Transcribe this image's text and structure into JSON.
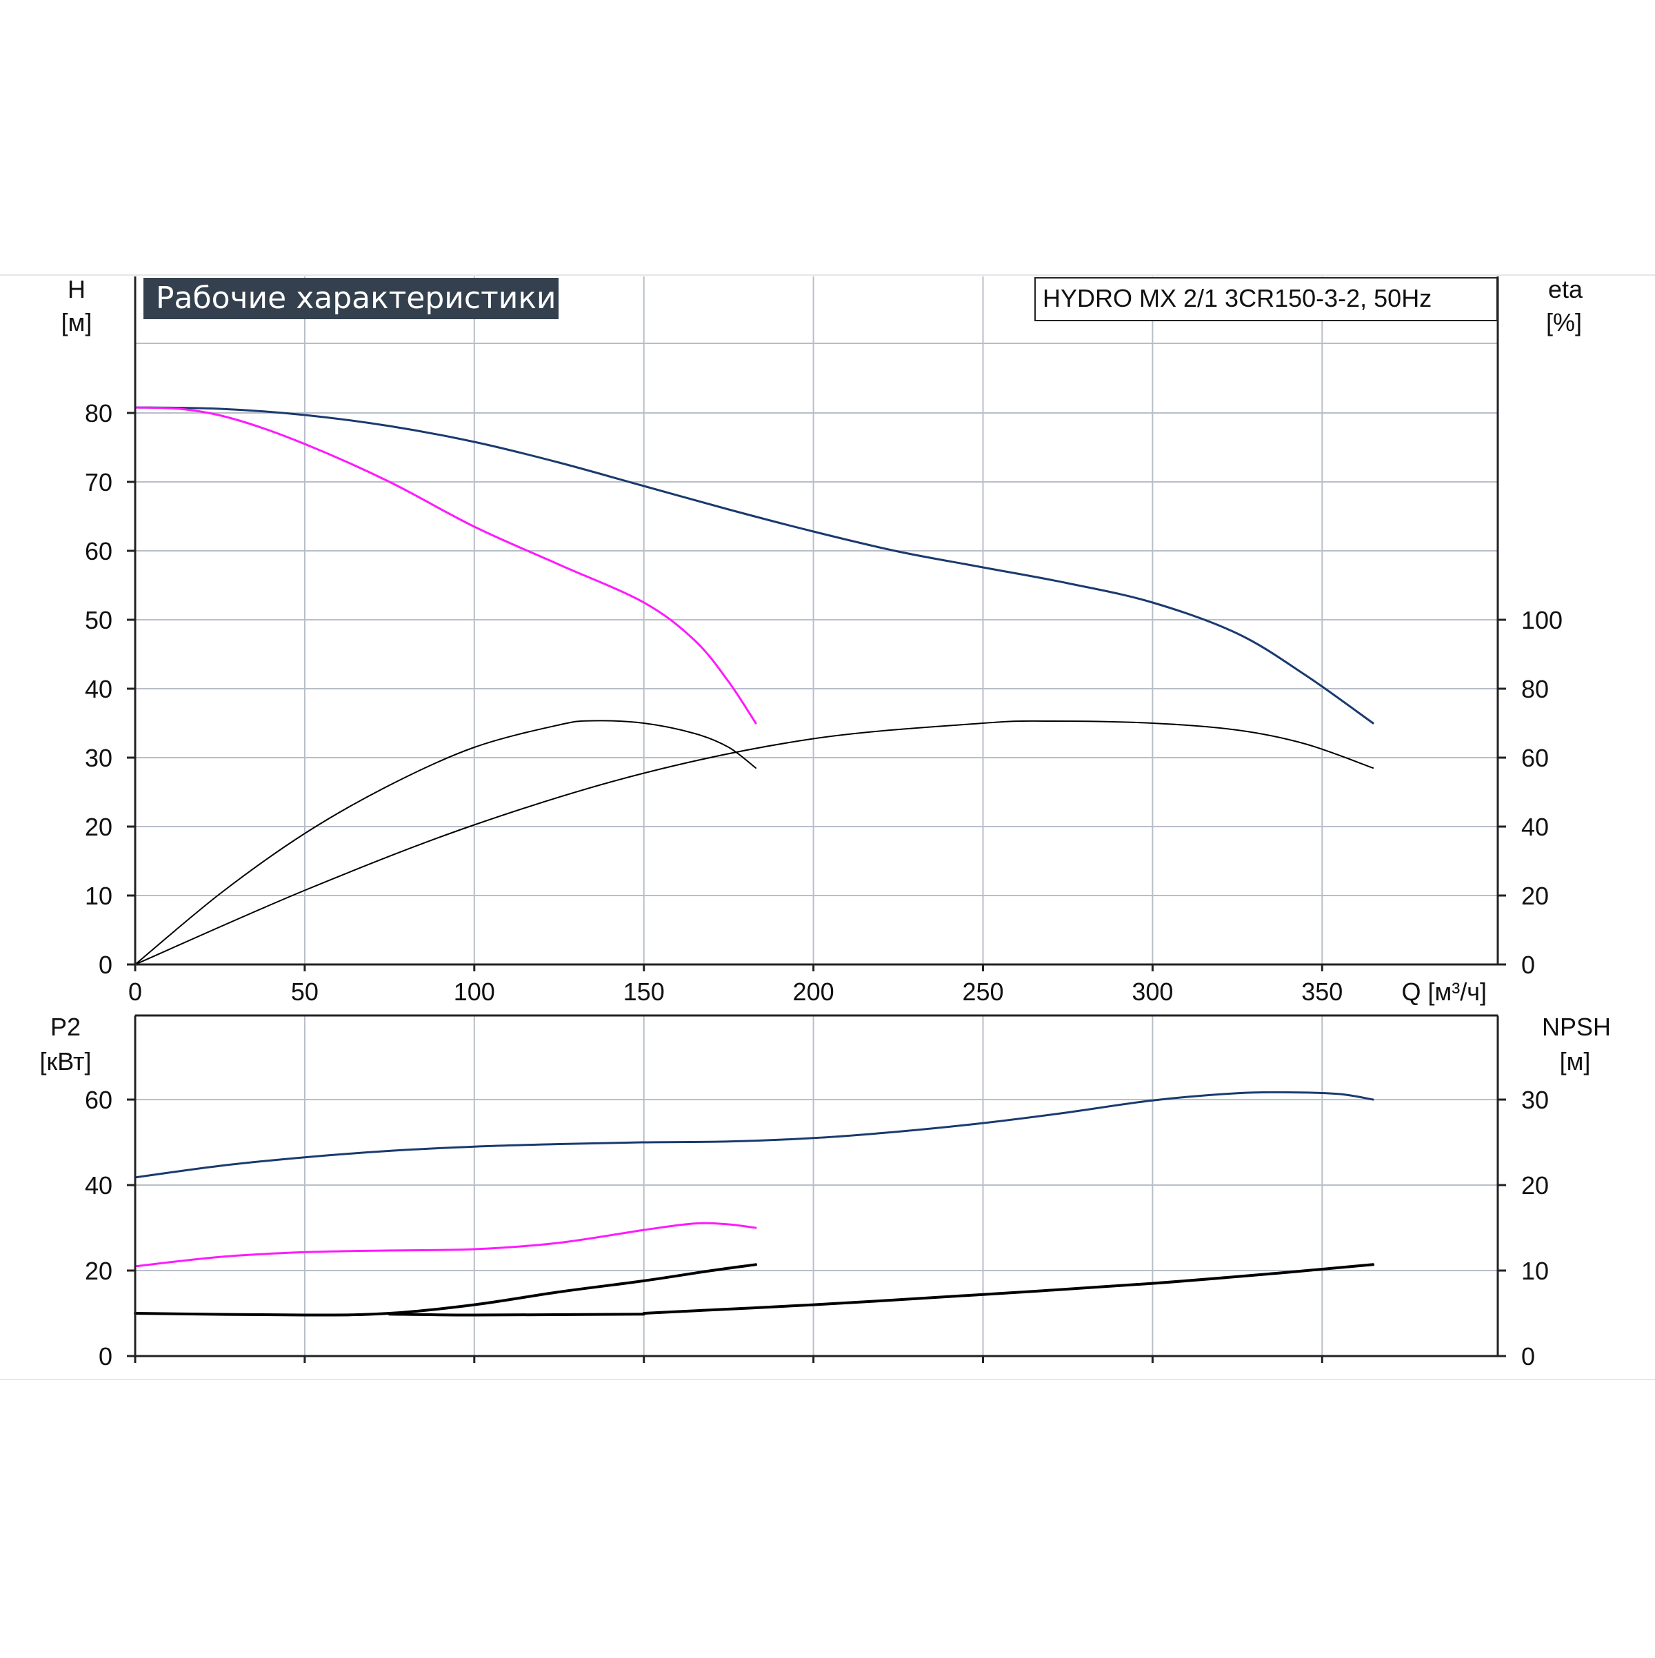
{
  "colors": {
    "background": "#ffffff",
    "grid": "#b8bec8",
    "axis": "#222222",
    "title_box_bg": "#34404e",
    "title_box_text": "#ffffff",
    "curve_full": "#1a3a6e",
    "curve_partial": "#ff19ff",
    "curve_black": "#000000"
  },
  "chart_data": [
    {
      "type": "line",
      "title": "Рабочие характеристики",
      "model_label": "HYDRO MX 2/1 3CR150-3-2, 50Hz",
      "xlabel": "Q [м³/ч]",
      "ylabel_line1": "H",
      "ylabel_line2": "[м]",
      "y2label_line1": "eta",
      "y2label_line2": "[%]",
      "xlim": [
        0,
        400
      ],
      "ylim": [
        0,
        90
      ],
      "y2lim": [
        0,
        100
      ],
      "grid": true,
      "x_ticks": [
        0,
        50,
        100,
        150,
        200,
        250,
        300,
        350
      ],
      "y_ticks": [
        0,
        10,
        20,
        30,
        40,
        50,
        60,
        70,
        80
      ],
      "y2_ticks": [
        0,
        20,
        40,
        60,
        80,
        100
      ],
      "x_tick_labels": [
        "0",
        "50",
        "100",
        "150",
        "200",
        "250",
        "300",
        "350"
      ],
      "y_tick_labels": [
        "0",
        "10",
        "20",
        "30",
        "40",
        "50",
        "60",
        "70",
        "80"
      ],
      "y2_tick_labels": [
        "0",
        "20",
        "40",
        "60",
        "80",
        "100"
      ],
      "series": [
        {
          "axis": "y",
          "color": "#1a3a6e",
          "points": [
            [
              0,
              80.8
            ],
            [
              25,
              80.6
            ],
            [
              50,
              79.7
            ],
            [
              75,
              78.1
            ],
            [
              100,
              75.8
            ],
            [
              125,
              72.8
            ],
            [
              150,
              69.4
            ],
            [
              175,
              66.0
            ],
            [
              200,
              62.8
            ],
            [
              225,
              59.9
            ],
            [
              250,
              57.6
            ],
            [
              275,
              55.3
            ],
            [
              300,
              52.5
            ],
            [
              325,
              48.0
            ],
            [
              345,
              42.0
            ],
            [
              365,
              35.0
            ]
          ]
        },
        {
          "axis": "y",
          "color": "#ff19ff",
          "points": [
            [
              0,
              80.8
            ],
            [
              15,
              80.5
            ],
            [
              30,
              79.0
            ],
            [
              50,
              75.5
            ],
            [
              75,
              70.0
            ],
            [
              100,
              63.5
            ],
            [
              125,
              58.0
            ],
            [
              150,
              52.5
            ],
            [
              165,
              47.0
            ],
            [
              175,
              41.0
            ],
            [
              183,
              35.0
            ]
          ]
        },
        {
          "axis": "y2",
          "color": "#000000",
          "points": [
            [
              0,
              0
            ],
            [
              25,
              20.5
            ],
            [
              50,
              38.0
            ],
            [
              75,
              52.0
            ],
            [
              100,
              63.0
            ],
            [
              125,
              69.5
            ],
            [
              135,
              70.7
            ],
            [
              150,
              70.0
            ],
            [
              165,
              67.0
            ],
            [
              175,
              63.0
            ],
            [
              183,
              57.0
            ]
          ]
        },
        {
          "axis": "y2",
          "color": "#000000",
          "points": [
            [
              0,
              0
            ],
            [
              50,
              21.5
            ],
            [
              100,
              40.5
            ],
            [
              150,
              55.5
            ],
            [
              200,
              65.5
            ],
            [
              250,
              70.0
            ],
            [
              270,
              70.6
            ],
            [
              300,
              70.0
            ],
            [
              325,
              68.0
            ],
            [
              345,
              64.0
            ],
            [
              365,
              57.0
            ]
          ]
        }
      ]
    },
    {
      "type": "line",
      "ylabel_line1": "P2",
      "ylabel_line2": "[кВт]",
      "y2label_line1": "NPSH",
      "y2label_line2": "[м]",
      "xlim": [
        0,
        400
      ],
      "ylim": [
        0,
        60
      ],
      "y2lim": [
        0,
        30
      ],
      "grid": true,
      "x_ticks": [
        0,
        50,
        100,
        150,
        200,
        250,
        300,
        350
      ],
      "y_ticks": [
        0,
        20,
        40,
        60
      ],
      "y2_ticks": [
        0,
        10,
        20,
        30
      ],
      "y_tick_labels": [
        "0",
        "20",
        "40",
        "60"
      ],
      "y2_tick_labels": [
        "0",
        "10",
        "20",
        "30"
      ],
      "series": [
        {
          "axis": "y",
          "color": "#1a3a6e",
          "points": [
            [
              0,
              41.8
            ],
            [
              25,
              44.5
            ],
            [
              50,
              46.5
            ],
            [
              75,
              48.0
            ],
            [
              100,
              49.0
            ],
            [
              125,
              49.6
            ],
            [
              150,
              50.0
            ],
            [
              175,
              50.2
            ],
            [
              200,
              51.0
            ],
            [
              225,
              52.5
            ],
            [
              250,
              54.5
            ],
            [
              275,
              57.0
            ],
            [
              300,
              59.8
            ],
            [
              325,
              61.5
            ],
            [
              340,
              61.7
            ],
            [
              355,
              61.3
            ],
            [
              365,
              60.0
            ]
          ]
        },
        {
          "axis": "y",
          "color": "#ff19ff",
          "points": [
            [
              0,
              21.0
            ],
            [
              25,
              23.2
            ],
            [
              50,
              24.3
            ],
            [
              75,
              24.7
            ],
            [
              100,
              25.0
            ],
            [
              125,
              26.5
            ],
            [
              150,
              29.5
            ],
            [
              165,
              31.0
            ],
            [
              175,
              30.8
            ],
            [
              183,
              30.0
            ]
          ]
        },
        {
          "axis": "y2",
          "color": "#000000",
          "points": [
            [
              0,
              5.0
            ],
            [
              50,
              4.8
            ],
            [
              75,
              5.0
            ],
            [
              100,
              6.0
            ],
            [
              125,
              7.5
            ],
            [
              150,
              8.8
            ],
            [
              170,
              10.0
            ],
            [
              183,
              10.7
            ]
          ]
        },
        {
          "axis": "y2",
          "color": "#000000",
          "points": [
            [
              75,
              4.9
            ],
            [
              100,
              4.8
            ],
            [
              150,
              4.9
            ]
          ]
        },
        {
          "axis": "y2",
          "color": "#000000",
          "points": [
            [
              150,
              5.0
            ],
            [
              200,
              6.0
            ],
            [
              250,
              7.2
            ],
            [
              300,
              8.5
            ],
            [
              340,
              9.8
            ],
            [
              365,
              10.7
            ]
          ]
        }
      ]
    }
  ]
}
